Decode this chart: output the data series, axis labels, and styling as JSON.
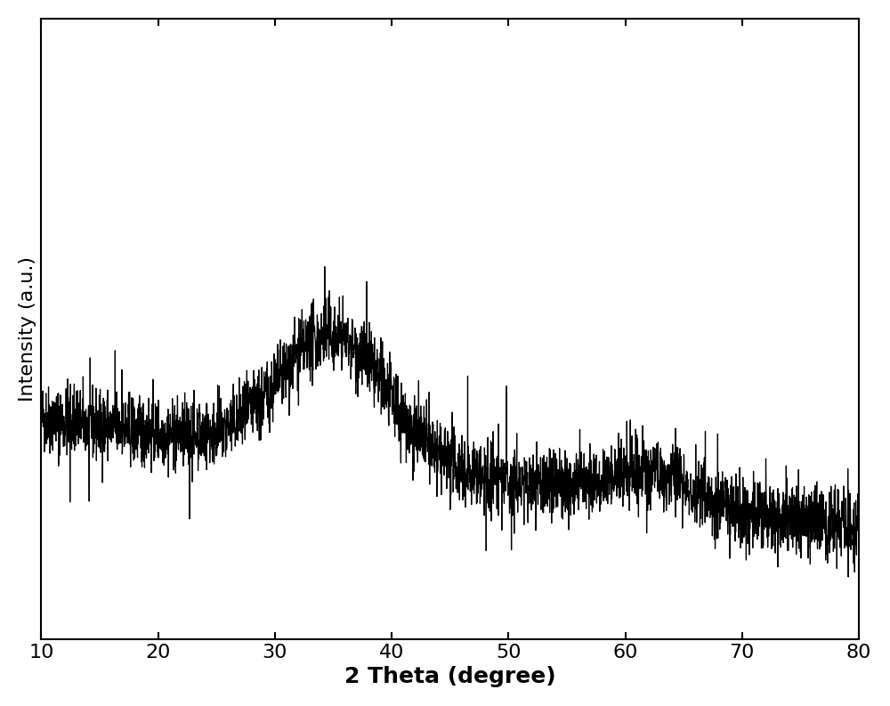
{
  "xlabel": "2 Theta (degree)",
  "ylabel": "Intensity (a.u.)",
  "xlim": [
    10,
    80
  ],
  "xlabel_fontsize": 18,
  "ylabel_fontsize": 16,
  "tick_fontsize": 16,
  "line_color": "#000000",
  "line_width": 0.9,
  "background_color": "#ffffff",
  "xticks": [
    10,
    20,
    30,
    40,
    50,
    60,
    70,
    80
  ],
  "seed": 42,
  "figsize": [
    10.0,
    7.93
  ]
}
